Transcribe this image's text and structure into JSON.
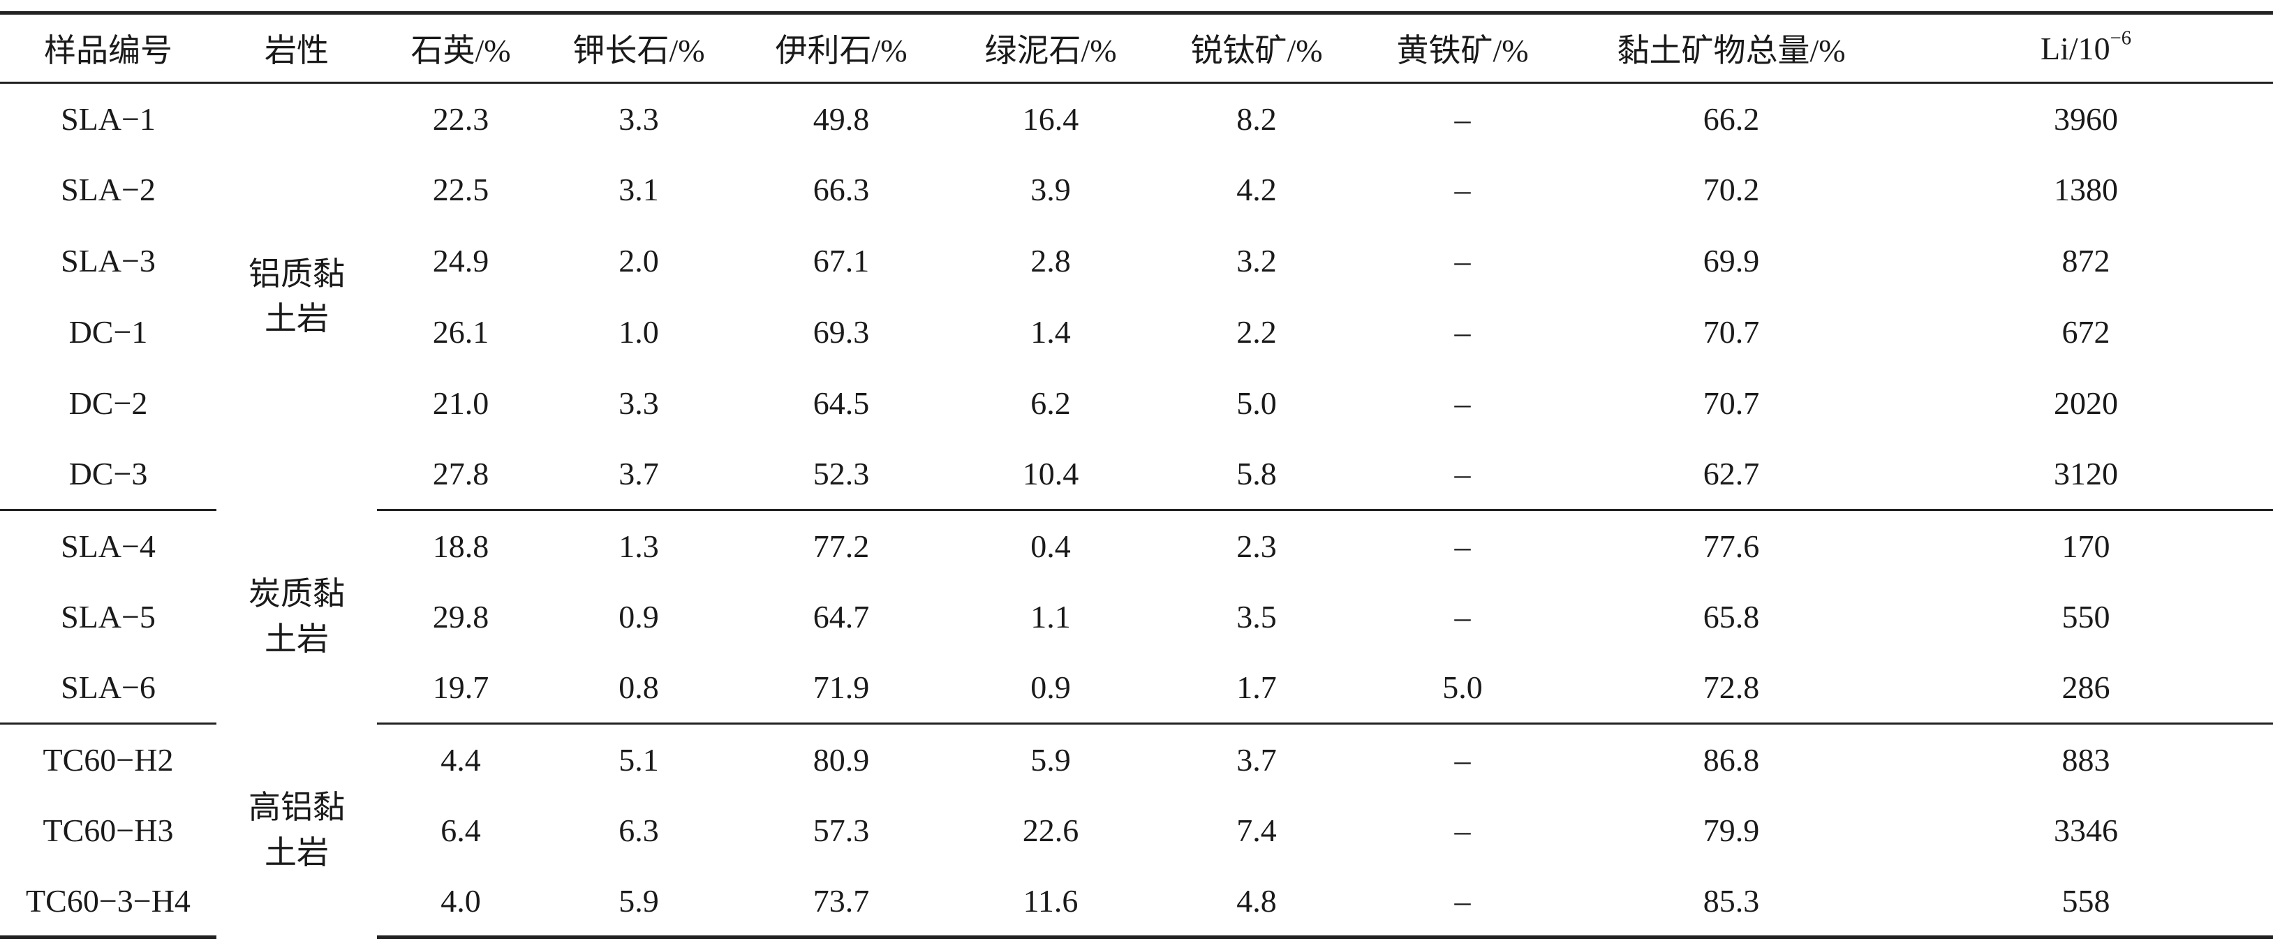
{
  "columns": [
    {
      "label": "样品编号"
    },
    {
      "label": "岩性"
    },
    {
      "label": "石英/%"
    },
    {
      "label": "钾长石/%"
    },
    {
      "label": "伊利石/%"
    },
    {
      "label": "绿泥石/%"
    },
    {
      "label": "锐钛矿/%"
    },
    {
      "label": "黄铁矿/%"
    },
    {
      "label": "黏土矿物总量/%"
    },
    {
      "label": "Li/10",
      "sup": "−6"
    }
  ],
  "groups": [
    {
      "lithology_line1": "铝质黏",
      "lithology_line2": "土岩",
      "rows": [
        [
          "SLA−1",
          "22.3",
          "3.3",
          "49.8",
          "16.4",
          "8.2",
          "–",
          "66.2",
          "3960"
        ],
        [
          "SLA−2",
          "22.5",
          "3.1",
          "66.3",
          "3.9",
          "4.2",
          "–",
          "70.2",
          "1380"
        ],
        [
          "SLA−3",
          "24.9",
          "2.0",
          "67.1",
          "2.8",
          "3.2",
          "–",
          "69.9",
          "872"
        ],
        [
          "DC−1",
          "26.1",
          "1.0",
          "69.3",
          "1.4",
          "2.2",
          "–",
          "70.7",
          "672"
        ],
        [
          "DC−2",
          "21.0",
          "3.3",
          "64.5",
          "6.2",
          "5.0",
          "–",
          "70.7",
          "2020"
        ],
        [
          "DC−3",
          "27.8",
          "3.7",
          "52.3",
          "10.4",
          "5.8",
          "–",
          "62.7",
          "3120"
        ]
      ]
    },
    {
      "lithology_line1": "炭质黏",
      "lithology_line2": "土岩",
      "rows": [
        [
          "SLA−4",
          "18.8",
          "1.3",
          "77.2",
          "0.4",
          "2.3",
          "–",
          "77.6",
          "170"
        ],
        [
          "SLA−5",
          "29.8",
          "0.9",
          "64.7",
          "1.1",
          "3.5",
          "–",
          "65.8",
          "550"
        ],
        [
          "SLA−6",
          "19.7",
          "0.8",
          "71.9",
          "0.9",
          "1.7",
          "5.0",
          "72.8",
          "286"
        ]
      ]
    },
    {
      "lithology_line1": "高铝黏",
      "lithology_line2": "土岩",
      "rows": [
        [
          "TC60−H2",
          "4.4",
          "5.1",
          "80.9",
          "5.9",
          "3.7",
          "–",
          "86.8",
          "883"
        ],
        [
          "TC60−H3",
          "6.4",
          "6.3",
          "57.3",
          "22.6",
          "7.4",
          "–",
          "79.9",
          "3346"
        ],
        [
          "TC60−3−H4",
          "4.0",
          "5.9",
          "73.7",
          "11.6",
          "4.8",
          "–",
          "85.3",
          "558"
        ]
      ]
    }
  ]
}
